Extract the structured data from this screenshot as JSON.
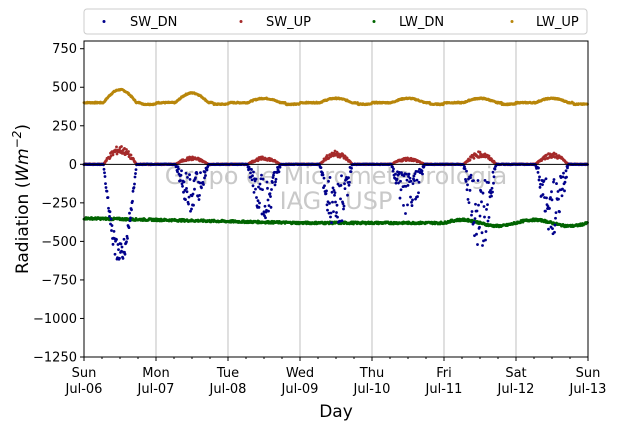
{
  "chart_data": {
    "type": "scatter",
    "title": "",
    "xlabel": "Day",
    "ylabel_prefix": "Radiation (",
    "ylabel_unit_main": "Wm",
    "ylabel_unit_exp": "−2",
    "ylabel_suffix": ")",
    "ylim": [
      -1250,
      800
    ],
    "xlim_days": [
      0,
      7
    ],
    "yticks": [
      -1250,
      -1000,
      -750,
      -500,
      -250,
      0,
      250,
      500,
      750
    ],
    "ytick_labels": [
      "−1250",
      "−1000",
      "−750",
      "−500",
      "−250",
      "0",
      "250",
      "500",
      "750"
    ],
    "xticks": [
      {
        "day": 0,
        "line1": "Sun",
        "line2": "Jul-06"
      },
      {
        "day": 1,
        "line1": "Mon",
        "line2": "Jul-07"
      },
      {
        "day": 2,
        "line1": "Tue",
        "line2": "Jul-08"
      },
      {
        "day": 3,
        "line1": "Wed",
        "line2": "Jul-09"
      },
      {
        "day": 4,
        "line1": "Thu",
        "line2": "Jul-10"
      },
      {
        "day": 5,
        "line1": "Fri",
        "line2": "Jul-11"
      },
      {
        "day": 6,
        "line1": "Sat",
        "line2": "Jul-12"
      },
      {
        "day": 7,
        "line1": "Sun",
        "line2": "Jul-13"
      }
    ],
    "grid": "vertical",
    "legend_position": "top, above plot",
    "watermark_line1": "Grupo de Micrometeorologia",
    "watermark_line2": "IAG - USP",
    "series": [
      {
        "name": "SW_DN",
        "color": "#00008b",
        "day_peaks": [
          -600,
          -280,
          -330,
          -400,
          -310,
          -520,
          -420
        ]
      },
      {
        "name": "SW_UP",
        "color": "#a52a2a",
        "day_peaks": [
          110,
          45,
          45,
          80,
          40,
          75,
          70
        ]
      },
      {
        "name": "LW_DN",
        "color": "#006400",
        "baseline": -350
      },
      {
        "name": "LW_UP",
        "color": "#b8860b",
        "baseline": 400
      }
    ]
  }
}
